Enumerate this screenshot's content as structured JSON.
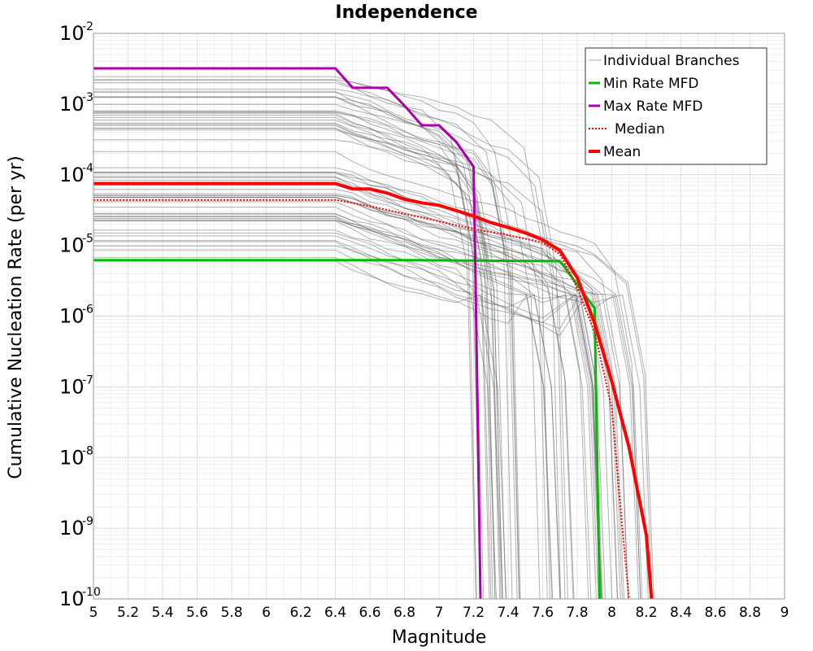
{
  "chart_data": {
    "type": "line",
    "title": "Independence",
    "xlabel": "Magnitude",
    "ylabel": "Cumulative Nucleation Rate (per yr)",
    "xlim": [
      5,
      9
    ],
    "ylim": [
      1e-10,
      0.01
    ],
    "yscale": "log",
    "grid": true,
    "legend_position": "top-right",
    "x_ticks": [
      "5",
      "5.2",
      "5.4",
      "5.6",
      "5.8",
      "6",
      "6.2",
      "6.4",
      "6.6",
      "6.8",
      "7",
      "7.2",
      "7.4",
      "7.6",
      "7.8",
      "8",
      "8.2",
      "8.4",
      "8.6",
      "8.8",
      "9"
    ],
    "y_ticks": [
      {
        "base": "10",
        "exp": "-2",
        "value": 0.01
      },
      {
        "base": "10",
        "exp": "-3",
        "value": 0.001
      },
      {
        "base": "10",
        "exp": "-4",
        "value": 0.0001
      },
      {
        "base": "10",
        "exp": "-5",
        "value": 1e-05
      },
      {
        "base": "10",
        "exp": "-6",
        "value": 1e-06
      },
      {
        "base": "10",
        "exp": "-7",
        "value": 1e-07
      },
      {
        "base": "10",
        "exp": "-8",
        "value": 1e-08
      },
      {
        "base": "10",
        "exp": "-9",
        "value": 1e-09
      },
      {
        "base": "10",
        "exp": "-10",
        "value": 1e-10
      }
    ],
    "series": [
      {
        "name": "Individual Branches",
        "color": "#555555",
        "style": "thin",
        "branch_count": 60,
        "start_rate_range": [
          6e-06,
          0.0025
        ],
        "cutoff_magnitude_range": [
          7.2,
          8.25
        ]
      },
      {
        "name": "Min Rate MFD",
        "color": "#00bb00",
        "style": "solid",
        "points": [
          [
            5,
            6.2e-06
          ],
          [
            6.8,
            6.2e-06
          ],
          [
            7.7,
            6e-06
          ],
          [
            7.9,
            1.3e-06
          ],
          [
            7.93,
            1e-10
          ]
        ]
      },
      {
        "name": "Max Rate MFD",
        "color": "#aa00aa",
        "style": "solid",
        "points": [
          [
            5,
            0.0032
          ],
          [
            6.4,
            0.0032
          ],
          [
            6.5,
            0.0017
          ],
          [
            6.7,
            0.0017
          ],
          [
            6.8,
            0.00095
          ],
          [
            6.9,
            0.0005
          ],
          [
            7,
            0.0005
          ],
          [
            7.1,
            0.00029
          ],
          [
            7.2,
            0.00013
          ],
          [
            7.21,
            5.5e-06
          ],
          [
            7.24,
            1e-10
          ]
        ]
      },
      {
        "name": "Median",
        "color": "#ff0000",
        "style": "dotted",
        "points": [
          [
            5,
            4.4e-05
          ],
          [
            6.4,
            4.4e-05
          ],
          [
            6.6,
            3.6e-05
          ],
          [
            6.8,
            2.8e-05
          ],
          [
            7,
            2.2e-05
          ],
          [
            7.2,
            1.7e-05
          ],
          [
            7.4,
            1.4e-05
          ],
          [
            7.6,
            1.1e-05
          ],
          [
            7.7,
            7.5e-06
          ],
          [
            7.8,
            2.5e-06
          ],
          [
            7.9,
            6e-07
          ],
          [
            8,
            5e-08
          ],
          [
            8.05,
            2e-09
          ],
          [
            8.1,
            1e-10
          ]
        ]
      },
      {
        "name": "Mean",
        "color": "#ff0000",
        "style": "thick",
        "points": [
          [
            5,
            7.5e-05
          ],
          [
            6.4,
            7.5e-05
          ],
          [
            6.5,
            6.3e-05
          ],
          [
            6.6,
            6.3e-05
          ],
          [
            6.7,
            5.5e-05
          ],
          [
            6.8,
            4.5e-05
          ],
          [
            6.9,
            4e-05
          ],
          [
            7,
            3.7e-05
          ],
          [
            7.1,
            3.1e-05
          ],
          [
            7.2,
            2.6e-05
          ],
          [
            7.3,
            2.1e-05
          ],
          [
            7.4,
            1.8e-05
          ],
          [
            7.5,
            1.5e-05
          ],
          [
            7.6,
            1.2e-05
          ],
          [
            7.7,
            8.5e-06
          ],
          [
            7.8,
            3.5e-06
          ],
          [
            7.9,
            8e-07
          ],
          [
            8,
            1.2e-07
          ],
          [
            8.1,
            1.4e-08
          ],
          [
            8.2,
            8e-10
          ],
          [
            8.23,
            1e-10
          ]
        ]
      }
    ]
  }
}
